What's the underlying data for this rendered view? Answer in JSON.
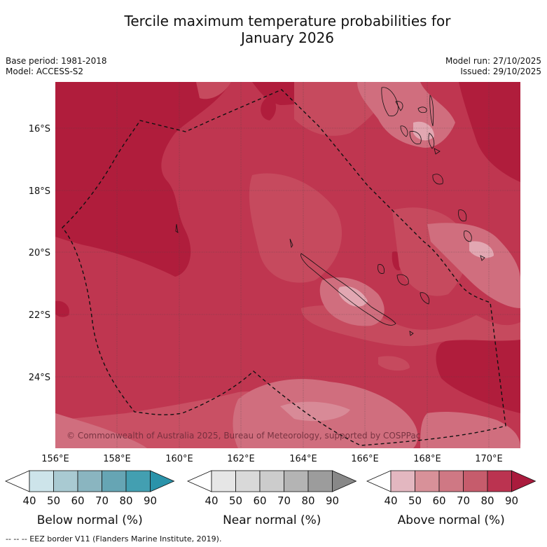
{
  "header": {
    "title_line1": "Tercile maximum temperature probabilities for",
    "title_line2": "January 2026",
    "base_period": "Base period: 1981-2018",
    "model": "Model: ACCESS-S2",
    "model_run": "Model run: 27/10/2025",
    "issued": "Issued: 29/10/2025"
  },
  "map": {
    "lat_labels": [
      "16°S",
      "18°S",
      "20°S",
      "22°S",
      "24°S"
    ],
    "lon_labels": [
      "156°E",
      "158°E",
      "160°E",
      "162°E",
      "164°E",
      "166°E",
      "168°E",
      "170°E"
    ],
    "copyright": "© Commonwealth of Australia 2025, Bureau of Meteorology, supported by COSPPac",
    "colors": {
      "deep_red": "#b01d3c",
      "red": "#bf3650",
      "mid": "#c95064",
      "light": "#d06e7e",
      "pale": "#e2a7b2"
    }
  },
  "legends": [
    {
      "title": "Below normal (%)",
      "ticks": [
        "40",
        "50",
        "60",
        "70",
        "80",
        "90"
      ],
      "colors": [
        "#ffffff",
        "#cde4ea",
        "#a9cad2",
        "#8ab5c0",
        "#66a5b4",
        "#439fb1",
        "#2a93aa"
      ]
    },
    {
      "title": "Near normal (%)",
      "ticks": [
        "40",
        "50",
        "60",
        "70",
        "80",
        "90"
      ],
      "colors": [
        "#ffffff",
        "#e6e6e6",
        "#d9d9d9",
        "#cccccc",
        "#b4b4b4",
        "#9c9c9c",
        "#888888"
      ]
    },
    {
      "title": "Above normal (%)",
      "ticks": [
        "40",
        "50",
        "60",
        "70",
        "80",
        "90"
      ],
      "colors": [
        "#ffffff",
        "#e3b7c0",
        "#d89199",
        "#cf7884",
        "#c65c6c",
        "#bb3350",
        "#aa1b3d"
      ]
    }
  ],
  "footer": "--  --  -- EEZ border V11 (Flanders Marine Institute, 2019)."
}
